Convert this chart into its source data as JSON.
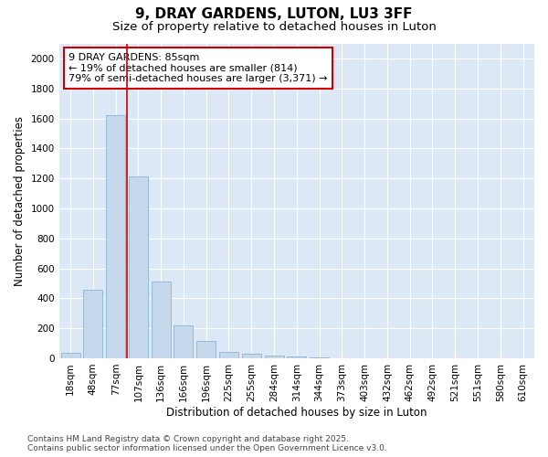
{
  "title": "9, DRAY GARDENS, LUTON, LU3 3FF",
  "subtitle": "Size of property relative to detached houses in Luton",
  "xlabel": "Distribution of detached houses by size in Luton",
  "ylabel": "Number of detached properties",
  "categories": [
    "18sqm",
    "48sqm",
    "77sqm",
    "107sqm",
    "136sqm",
    "166sqm",
    "196sqm",
    "225sqm",
    "255sqm",
    "284sqm",
    "314sqm",
    "344sqm",
    "373sqm",
    "403sqm",
    "432sqm",
    "462sqm",
    "492sqm",
    "521sqm",
    "551sqm",
    "580sqm",
    "610sqm"
  ],
  "values": [
    35,
    460,
    1620,
    1210,
    510,
    220,
    115,
    45,
    30,
    20,
    10,
    5,
    2,
    0,
    0,
    0,
    0,
    0,
    0,
    0,
    0
  ],
  "bar_color": "#c5d8ec",
  "bar_edge_color": "#8ab4d4",
  "red_line_x": 2.5,
  "annotation_title": "9 DRAY GARDENS: 85sqm",
  "annotation_line1": "← 19% of detached houses are smaller (814)",
  "annotation_line2": "79% of semi-detached houses are larger (3,371) →",
  "annotation_box_facecolor": "#ffffff",
  "annotation_box_edgecolor": "#cc0000",
  "red_line_color": "#cc0000",
  "ylim": [
    0,
    2100
  ],
  "yticks": [
    0,
    200,
    400,
    600,
    800,
    1000,
    1200,
    1400,
    1600,
    1800,
    2000
  ],
  "plot_bg_color": "#dce8f5",
  "fig_bg_color": "#ffffff",
  "grid_color": "#ffffff",
  "footer1": "Contains HM Land Registry data © Crown copyright and database right 2025.",
  "footer2": "Contains public sector information licensed under the Open Government Licence v3.0.",
  "title_fontsize": 11,
  "subtitle_fontsize": 9.5,
  "axis_label_fontsize": 8.5,
  "tick_fontsize": 7.5,
  "annotation_fontsize": 8,
  "footer_fontsize": 6.5
}
